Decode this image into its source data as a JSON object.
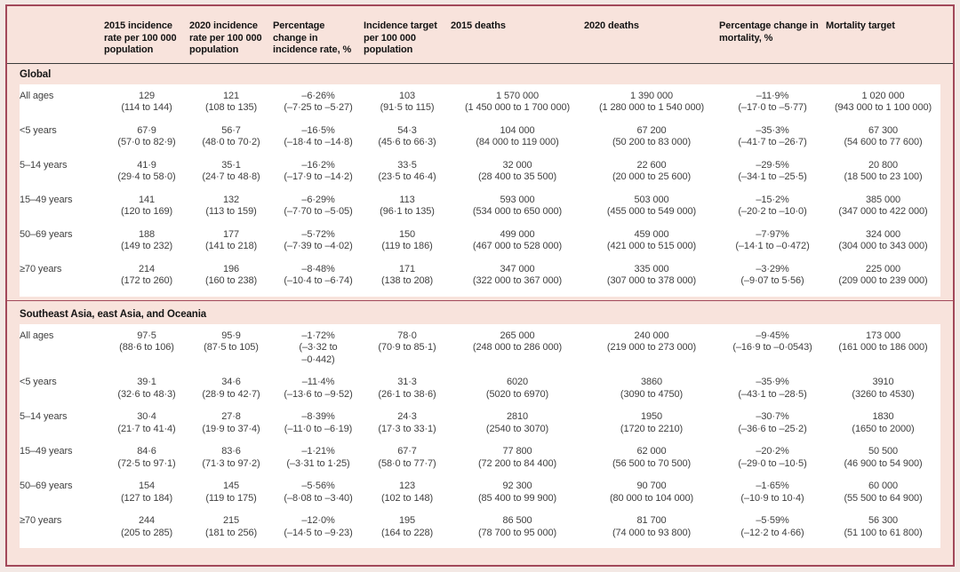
{
  "header": {
    "columns": [
      "",
      "2015 incidence rate per 100 000 population",
      "2020 incidence rate per 100 000 population",
      "Percentage change in incidence rate, %",
      "Incidence target per 100 000 population",
      "2015 deaths",
      "2020 deaths",
      "Percentage change in mortality, %",
      "Mortality target"
    ]
  },
  "sections": [
    {
      "title": "Global",
      "rows": [
        {
          "label": "All ages",
          "cells": [
            {
              "v": "129",
              "r": "(114 to 144)"
            },
            {
              "v": "121",
              "r": "(108 to 135)"
            },
            {
              "v": "–6·26%",
              "r": "(–7·25 to –5·27)"
            },
            {
              "v": "103",
              "r": "(91·5 to 115)"
            },
            {
              "v": "1 570 000",
              "r": "(1 450 000 to 1 700 000)"
            },
            {
              "v": "1 390 000",
              "r": "(1 280 000 to 1 540 000)"
            },
            {
              "v": "–11·9%",
              "r": "(–17·0 to –5·77)"
            },
            {
              "v": "1 020 000",
              "r": "(943 000 to 1 100 000)"
            }
          ]
        },
        {
          "label": "<5 years",
          "cells": [
            {
              "v": "67·9",
              "r": "(57·0 to 82·9)"
            },
            {
              "v": "56·7",
              "r": "(48·0 to 70·2)"
            },
            {
              "v": "–16·5%",
              "r": "(–18·4 to –14·8)"
            },
            {
              "v": "54·3",
              "r": "(45·6 to 66·3)"
            },
            {
              "v": "104 000",
              "r": "(84 000 to 119 000)"
            },
            {
              "v": "67 200",
              "r": "(50 200 to 83 000)"
            },
            {
              "v": "–35·3%",
              "r": "(–41·7 to –26·7)"
            },
            {
              "v": "67 300",
              "r": "(54 600 to 77 600)"
            }
          ]
        },
        {
          "label": "5–14 years",
          "cells": [
            {
              "v": "41·9",
              "r": "(29·4 to 58·0)"
            },
            {
              "v": "35·1",
              "r": "(24·7 to 48·8)"
            },
            {
              "v": "–16·2%",
              "r": "(–17·9 to –14·2)"
            },
            {
              "v": "33·5",
              "r": "(23·5 to 46·4)"
            },
            {
              "v": "32 000",
              "r": "(28 400 to 35 500)"
            },
            {
              "v": "22 600",
              "r": "(20 000 to 25 600)"
            },
            {
              "v": "–29·5%",
              "r": "(–34·1 to –25·5)"
            },
            {
              "v": "20 800",
              "r": "(18 500 to 23 100)"
            }
          ]
        },
        {
          "label": "15–49 years",
          "cells": [
            {
              "v": "141",
              "r": "(120 to 169)"
            },
            {
              "v": "132",
              "r": "(113 to 159)"
            },
            {
              "v": "–6·29%",
              "r": "(–7·70 to –5·05)"
            },
            {
              "v": "113",
              "r": "(96·1 to 135)"
            },
            {
              "v": "593 000",
              "r": "(534 000 to 650 000)"
            },
            {
              "v": "503 000",
              "r": "(455 000 to 549 000)"
            },
            {
              "v": "–15·2%",
              "r": "(–20·2 to –10·0)"
            },
            {
              "v": "385 000",
              "r": "(347 000 to 422 000)"
            }
          ]
        },
        {
          "label": "50–69 years",
          "cells": [
            {
              "v": "188",
              "r": "(149 to 232)"
            },
            {
              "v": "177",
              "r": "(141 to 218)"
            },
            {
              "v": "–5·72%",
              "r": "(–7·39 to –4·02)"
            },
            {
              "v": "150",
              "r": "(119 to 186)"
            },
            {
              "v": "499 000",
              "r": "(467 000 to 528 000)"
            },
            {
              "v": "459 000",
              "r": "(421 000 to 515 000)"
            },
            {
              "v": "–7·97%",
              "r": "(–14·1 to –0·472)"
            },
            {
              "v": "324 000",
              "r": "(304 000 to 343 000)"
            }
          ]
        },
        {
          "label": "≥70 years",
          "cells": [
            {
              "v": "214",
              "r": "(172 to 260)"
            },
            {
              "v": "196",
              "r": "(160 to 238)"
            },
            {
              "v": "–8·48%",
              "r": "(–10·4 to –6·74)"
            },
            {
              "v": "171",
              "r": "(138 to 208)"
            },
            {
              "v": "347 000",
              "r": "(322 000 to 367 000)"
            },
            {
              "v": "335 000",
              "r": "(307 000 to 378 000)"
            },
            {
              "v": "–3·29%",
              "r": "(–9·07 to 5·56)"
            },
            {
              "v": "225 000",
              "r": "(209 000 to 239 000)"
            }
          ]
        }
      ]
    },
    {
      "title": "Southeast Asia, east Asia, and Oceania",
      "rows": [
        {
          "label": "All ages",
          "cells": [
            {
              "v": "97·5",
              "r": "(88·6 to 106)"
            },
            {
              "v": "95·9",
              "r": "(87·5 to 105)"
            },
            {
              "v": "–1·72%",
              "r": "(–3·32 to\n–0·442)"
            },
            {
              "v": "78·0",
              "r": "(70·9 to 85·1)"
            },
            {
              "v": "265 000",
              "r": "(248 000 to 286 000)"
            },
            {
              "v": "240 000",
              "r": "(219 000 to 273 000)"
            },
            {
              "v": "–9·45%",
              "r": "(–16·9 to –0·0543)"
            },
            {
              "v": "173 000",
              "r": "(161 000 to 186 000)"
            }
          ]
        },
        {
          "label": "<5 years",
          "cells": [
            {
              "v": "39·1",
              "r": "(32·6 to 48·3)"
            },
            {
              "v": "34·6",
              "r": "(28·9 to 42·7)"
            },
            {
              "v": "–11·4%",
              "r": "(–13·6 to –9·52)"
            },
            {
              "v": "31·3",
              "r": "(26·1 to 38·6)"
            },
            {
              "v": "6020",
              "r": "(5020 to 6970)"
            },
            {
              "v": "3860",
              "r": "(3090 to 4750)"
            },
            {
              "v": "–35·9%",
              "r": "(–43·1 to –28·5)"
            },
            {
              "v": "3910",
              "r": "(3260 to 4530)"
            }
          ]
        },
        {
          "label": "5–14 years",
          "cells": [
            {
              "v": "30·4",
              "r": "(21·7 to 41·4)"
            },
            {
              "v": "27·8",
              "r": "(19·9 to 37·4)"
            },
            {
              "v": "–8·39%",
              "r": "(–11·0 to –6·19)"
            },
            {
              "v": "24·3",
              "r": "(17·3 to 33·1)"
            },
            {
              "v": "2810",
              "r": "(2540 to 3070)"
            },
            {
              "v": "1950",
              "r": "(1720 to 2210)"
            },
            {
              "v": "–30·7%",
              "r": "(–36·6 to –25·2)"
            },
            {
              "v": "1830",
              "r": "(1650 to 2000)"
            }
          ]
        },
        {
          "label": "15–49 years",
          "cells": [
            {
              "v": "84·6",
              "r": "(72·5 to 97·1)"
            },
            {
              "v": "83·6",
              "r": "(71·3 to 97·2)"
            },
            {
              "v": "–1·21%",
              "r": "(–3·31 to 1·25)"
            },
            {
              "v": "67·7",
              "r": "(58·0 to 77·7)"
            },
            {
              "v": "77 800",
              "r": "(72 200 to 84 400)"
            },
            {
              "v": "62 000",
              "r": "(56 500 to 70 500)"
            },
            {
              "v": "–20·2%",
              "r": "(–29·0 to –10·5)"
            },
            {
              "v": "50 500",
              "r": "(46 900 to 54 900)"
            }
          ]
        },
        {
          "label": "50–69 years",
          "cells": [
            {
              "v": "154",
              "r": "(127 to 184)"
            },
            {
              "v": "145",
              "r": "(119 to 175)"
            },
            {
              "v": "–5·56%",
              "r": "(–8·08 to –3·40)"
            },
            {
              "v": "123",
              "r": "(102 to 148)"
            },
            {
              "v": "92 300",
              "r": "(85 400 to 99 900)"
            },
            {
              "v": "90 700",
              "r": "(80 000 to 104 000)"
            },
            {
              "v": "–1·65%",
              "r": "(–10·9 to 10·4)"
            },
            {
              "v": "60 000",
              "r": "(55 500 to 64 900)"
            }
          ]
        },
        {
          "label": "≥70 years",
          "cells": [
            {
              "v": "244",
              "r": "(205 to 285)"
            },
            {
              "v": "215",
              "r": "(181 to 256)"
            },
            {
              "v": "–12·0%",
              "r": "(–14·5 to –9·23)"
            },
            {
              "v": "195",
              "r": "(164 to 228)"
            },
            {
              "v": "86 500",
              "r": "(78 700 to 95 000)"
            },
            {
              "v": "81 700",
              "r": "(74 000 to 93 800)"
            },
            {
              "v": "–5·59%",
              "r": "(–12·2 to 4·66)"
            },
            {
              "v": "56 300",
              "r": "(51 100 to 61 800)"
            }
          ]
        }
      ]
    }
  ],
  "colors": {
    "border": "#a2485a",
    "background_pink": "#f8e3dc",
    "row_background": "#ffffff",
    "header_rule": "#3a3a3a",
    "text": "#3f3f3f"
  }
}
